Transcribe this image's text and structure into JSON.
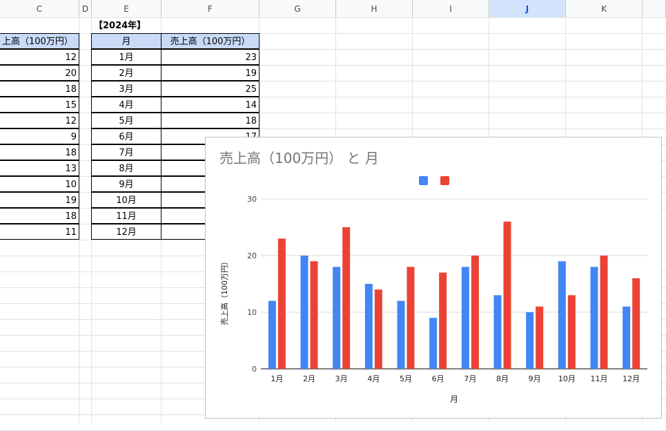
{
  "columns": [
    {
      "label": "C",
      "selected": false
    },
    {
      "label": "D",
      "selected": false
    },
    {
      "label": "E",
      "selected": false
    },
    {
      "label": "F",
      "selected": false
    },
    {
      "label": "G",
      "selected": false
    },
    {
      "label": "H",
      "selected": false
    },
    {
      "label": "I",
      "selected": false
    },
    {
      "label": "J",
      "selected": true
    },
    {
      "label": "K",
      "selected": false
    }
  ],
  "table_prev": {
    "header": "上高（100万円）",
    "values": [
      "12",
      "20",
      "18",
      "15",
      "12",
      "9",
      "18",
      "13",
      "10",
      "19",
      "18",
      "11"
    ]
  },
  "table_2024": {
    "title": "【2024年】",
    "col_month": "月",
    "col_sales": "売上高（100万円）",
    "months": [
      "1月",
      "2月",
      "3月",
      "4月",
      "5月",
      "6月",
      "7月",
      "8月",
      "9月",
      "10月",
      "11月",
      "12月"
    ],
    "values": [
      "23",
      "19",
      "25",
      "14",
      "18",
      "17",
      "",
      "",
      "",
      "",
      "",
      ""
    ]
  },
  "chart_data": {
    "type": "bar",
    "title": "売上高（100万円） と 月",
    "xlabel": "月",
    "ylabel": "売上高（100万円）",
    "ylim": [
      0,
      30
    ],
    "yticks": [
      0,
      10,
      20,
      30
    ],
    "grid": true,
    "legend_position": "top",
    "categories": [
      "1月",
      "2月",
      "3月",
      "4月",
      "5月",
      "6月",
      "7月",
      "8月",
      "9月",
      "10月",
      "11月",
      "12月"
    ],
    "series": [
      {
        "color": "#4285f4",
        "values": [
          12,
          20,
          18,
          15,
          12,
          9,
          18,
          13,
          10,
          19,
          18,
          11
        ]
      },
      {
        "color": "#ea4335",
        "values": [
          23,
          19,
          25,
          14,
          18,
          17,
          20,
          26,
          11,
          13,
          20,
          16
        ]
      }
    ]
  }
}
